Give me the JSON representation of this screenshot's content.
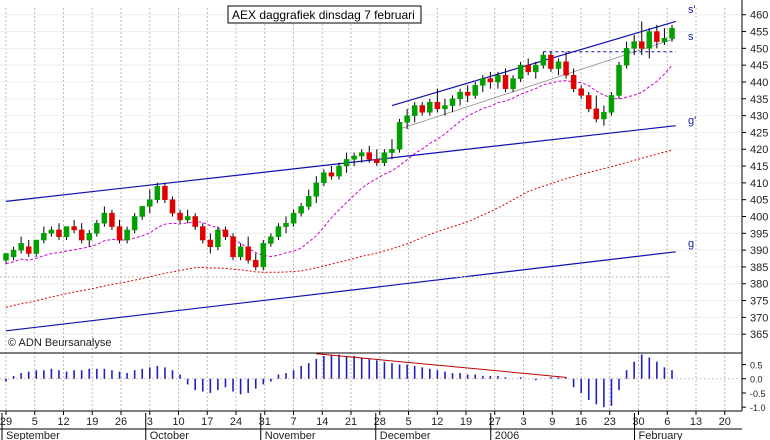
{
  "chart_data": {
    "type": "candlestick",
    "title": "AEX daggrafiek dinsdag 7 februari",
    "watermark": "© ADN Beursanalyse",
    "price_axis": {
      "min": 360,
      "max": 462,
      "ticks": [
        365,
        370,
        375,
        380,
        385,
        390,
        395,
        400,
        405,
        410,
        415,
        420,
        425,
        430,
        435,
        440,
        445,
        450,
        455,
        460
      ]
    },
    "osc_axis": {
      "min": -1.1,
      "max": 0.8,
      "ticks": [
        "0.5",
        "0.0",
        "-0.5",
        "-1.0"
      ]
    },
    "x_tick_labels": [
      "29",
      "5",
      "12",
      "19",
      "26",
      "3",
      "10",
      "17",
      "24",
      "31",
      "7",
      "14",
      "21",
      "28",
      "5",
      "12",
      "19",
      "27",
      "3",
      "9",
      "16",
      "23",
      "30",
      "6",
      "13",
      "20"
    ],
    "month_labels": [
      {
        "label": "September",
        "tick": 0
      },
      {
        "label": "October",
        "tick": 5
      },
      {
        "label": "November",
        "tick": 9
      },
      {
        "label": "December",
        "tick": 13
      },
      {
        "label": "2006",
        "tick": 17
      },
      {
        "label": "February",
        "tick": 22
      }
    ],
    "channel_labels": [
      "s'",
      "s",
      "g'",
      "g"
    ],
    "colors": {
      "up": "#00a000",
      "down": "#e00000",
      "channel": "#1010b0",
      "ma_short": "#d000d0",
      "ma_long": "#e00000",
      "trend": "#909090",
      "divergence": "#c00000",
      "osc": "#2020c0"
    },
    "candles": [
      [
        387,
        389,
        386,
        389
      ],
      [
        388,
        391,
        387,
        390
      ],
      [
        390,
        394,
        389,
        392
      ],
      [
        391,
        393,
        388,
        389
      ],
      [
        389,
        393,
        388,
        393
      ],
      [
        393,
        397,
        392,
        395
      ],
      [
        395,
        397,
        394,
        396
      ],
      [
        396,
        398,
        393,
        394
      ],
      [
        394,
        397,
        393,
        397
      ],
      [
        397,
        399,
        395,
        396
      ],
      [
        396,
        398,
        392,
        393
      ],
      [
        393,
        396,
        391,
        395
      ],
      [
        395,
        399,
        394,
        398
      ],
      [
        398,
        403,
        397,
        401
      ],
      [
        401,
        402,
        396,
        397
      ],
      [
        397,
        399,
        392,
        393
      ],
      [
        393,
        397,
        392,
        396
      ],
      [
        396,
        401,
        395,
        400
      ],
      [
        400,
        403,
        399,
        403
      ],
      [
        403,
        408,
        401,
        405
      ],
      [
        405,
        410,
        404,
        409
      ],
      [
        409,
        410,
        404,
        405
      ],
      [
        405,
        406,
        400,
        401
      ],
      [
        401,
        402,
        398,
        399
      ],
      [
        399,
        402,
        398,
        400
      ],
      [
        400,
        401,
        396,
        397
      ],
      [
        397,
        398,
        392,
        393
      ],
      [
        393,
        395,
        389,
        391
      ],
      [
        391,
        397,
        390,
        396
      ],
      [
        396,
        397,
        393,
        394
      ],
      [
        394,
        395,
        387,
        388
      ],
      [
        388,
        392,
        387,
        391
      ],
      [
        391,
        394,
        386,
        387
      ],
      [
        387,
        389,
        384,
        385
      ],
      [
        385,
        393,
        384,
        392
      ],
      [
        392,
        395,
        391,
        394
      ],
      [
        394,
        398,
        393,
        397
      ],
      [
        397,
        400,
        395,
        398
      ],
      [
        398,
        402,
        397,
        401
      ],
      [
        401,
        404,
        400,
        403
      ],
      [
        403,
        408,
        402,
        406
      ],
      [
        406,
        412,
        404,
        410
      ],
      [
        410,
        414,
        409,
        413
      ],
      [
        413,
        415,
        411,
        412
      ],
      [
        412,
        416,
        411,
        415
      ],
      [
        415,
        419,
        413,
        417
      ],
      [
        417,
        419,
        415,
        418
      ],
      [
        418,
        420,
        416,
        419
      ],
      [
        419,
        421,
        416,
        417
      ],
      [
        417,
        420,
        415,
        416
      ],
      [
        416,
        420,
        415,
        419
      ],
      [
        419,
        423,
        417,
        420
      ],
      [
        420,
        429,
        419,
        428
      ],
      [
        428,
        432,
        426,
        430
      ],
      [
        430,
        434,
        428,
        433
      ],
      [
        433,
        434,
        430,
        431
      ],
      [
        431,
        435,
        430,
        434
      ],
      [
        434,
        438,
        431,
        432
      ],
      [
        432,
        435,
        430,
        433
      ],
      [
        433,
        436,
        431,
        435
      ],
      [
        435,
        438,
        433,
        437
      ],
      [
        437,
        439,
        434,
        436
      ],
      [
        436,
        440,
        435,
        439
      ],
      [
        439,
        442,
        437,
        441
      ],
      [
        441,
        443,
        438,
        440
      ],
      [
        440,
        443,
        438,
        442
      ],
      [
        442,
        444,
        437,
        438
      ],
      [
        438,
        442,
        437,
        441
      ],
      [
        441,
        446,
        440,
        445
      ],
      [
        445,
        447,
        442,
        443
      ],
      [
        443,
        446,
        441,
        445
      ],
      [
        445,
        449,
        444,
        448
      ],
      [
        448,
        449,
        443,
        444
      ],
      [
        444,
        447,
        442,
        446
      ],
      [
        446,
        449,
        441,
        442
      ],
      [
        442,
        444,
        437,
        438
      ],
      [
        438,
        439,
        435,
        436
      ],
      [
        436,
        437,
        431,
        432
      ],
      [
        432,
        436,
        428,
        429
      ],
      [
        429,
        433,
        427,
        431
      ],
      [
        431,
        437,
        430,
        436
      ],
      [
        436,
        446,
        435,
        445
      ],
      [
        445,
        452,
        444,
        450
      ],
      [
        450,
        454,
        448,
        452
      ],
      [
        452,
        458,
        448,
        450
      ],
      [
        450,
        456,
        447,
        455
      ],
      [
        455,
        457,
        450,
        452
      ],
      [
        452,
        456,
        451,
        453
      ],
      [
        453,
        457,
        452,
        456
      ]
    ],
    "oscillator": [
      -0.1,
      0.1,
      0.2,
      0.25,
      0.3,
      0.3,
      0.35,
      0.3,
      0.25,
      0.3,
      0.3,
      0.35,
      0.35,
      0.35,
      0.3,
      0.25,
      0.2,
      0.3,
      0.35,
      0.4,
      0.45,
      0.4,
      0.3,
      0.15,
      -0.2,
      -0.4,
      -0.45,
      -0.5,
      -0.4,
      -0.3,
      -0.45,
      -0.55,
      -0.5,
      -0.35,
      -0.2,
      -0.1,
      0.15,
      0.2,
      0.3,
      0.45,
      0.55,
      0.7,
      0.8,
      0.85,
      0.85,
      0.8,
      0.8,
      0.75,
      0.7,
      0.65,
      0.6,
      0.55,
      0.5,
      0.5,
      0.45,
      0.4,
      0.35,
      0.3,
      0.25,
      0.2,
      0.2,
      0.15,
      0.15,
      0.1,
      0.1,
      0.1,
      0.05,
      0.0,
      0.05,
      0.0,
      -0.05,
      0.0,
      0.05,
      0.05,
      0.05,
      -0.3,
      -0.5,
      -0.75,
      -0.9,
      -1.0,
      -0.95,
      -0.4,
      0.3,
      0.6,
      0.85,
      0.75,
      0.6,
      0.4,
      0.3
    ]
  }
}
